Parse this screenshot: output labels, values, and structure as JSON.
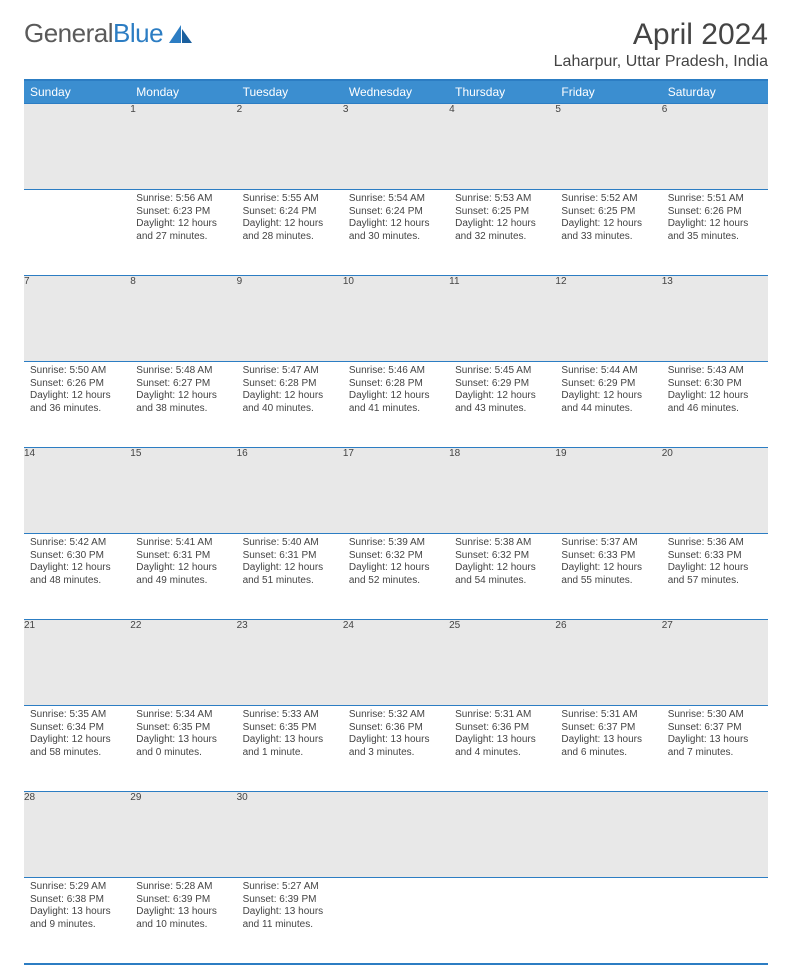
{
  "brand": {
    "name_gray": "General",
    "name_blue": "Blue"
  },
  "title": "April 2024",
  "location": "Laharpur, Uttar Pradesh, India",
  "colors": {
    "header_bg": "#3b8ed0",
    "border": "#2C7DC3",
    "daynum_bg": "#e8e8e8",
    "text": "#444444",
    "background": "#ffffff"
  },
  "day_headers": [
    "Sunday",
    "Monday",
    "Tuesday",
    "Wednesday",
    "Thursday",
    "Friday",
    "Saturday"
  ],
  "weeks": [
    [
      null,
      {
        "n": "1",
        "sr": "5:56 AM",
        "ss": "6:23 PM",
        "dl": "12 hours and 27 minutes."
      },
      {
        "n": "2",
        "sr": "5:55 AM",
        "ss": "6:24 PM",
        "dl": "12 hours and 28 minutes."
      },
      {
        "n": "3",
        "sr": "5:54 AM",
        "ss": "6:24 PM",
        "dl": "12 hours and 30 minutes."
      },
      {
        "n": "4",
        "sr": "5:53 AM",
        "ss": "6:25 PM",
        "dl": "12 hours and 32 minutes."
      },
      {
        "n": "5",
        "sr": "5:52 AM",
        "ss": "6:25 PM",
        "dl": "12 hours and 33 minutes."
      },
      {
        "n": "6",
        "sr": "5:51 AM",
        "ss": "6:26 PM",
        "dl": "12 hours and 35 minutes."
      }
    ],
    [
      {
        "n": "7",
        "sr": "5:50 AM",
        "ss": "6:26 PM",
        "dl": "12 hours and 36 minutes."
      },
      {
        "n": "8",
        "sr": "5:48 AM",
        "ss": "6:27 PM",
        "dl": "12 hours and 38 minutes."
      },
      {
        "n": "9",
        "sr": "5:47 AM",
        "ss": "6:28 PM",
        "dl": "12 hours and 40 minutes."
      },
      {
        "n": "10",
        "sr": "5:46 AM",
        "ss": "6:28 PM",
        "dl": "12 hours and 41 minutes."
      },
      {
        "n": "11",
        "sr": "5:45 AM",
        "ss": "6:29 PM",
        "dl": "12 hours and 43 minutes."
      },
      {
        "n": "12",
        "sr": "5:44 AM",
        "ss": "6:29 PM",
        "dl": "12 hours and 44 minutes."
      },
      {
        "n": "13",
        "sr": "5:43 AM",
        "ss": "6:30 PM",
        "dl": "12 hours and 46 minutes."
      }
    ],
    [
      {
        "n": "14",
        "sr": "5:42 AM",
        "ss": "6:30 PM",
        "dl": "12 hours and 48 minutes."
      },
      {
        "n": "15",
        "sr": "5:41 AM",
        "ss": "6:31 PM",
        "dl": "12 hours and 49 minutes."
      },
      {
        "n": "16",
        "sr": "5:40 AM",
        "ss": "6:31 PM",
        "dl": "12 hours and 51 minutes."
      },
      {
        "n": "17",
        "sr": "5:39 AM",
        "ss": "6:32 PM",
        "dl": "12 hours and 52 minutes."
      },
      {
        "n": "18",
        "sr": "5:38 AM",
        "ss": "6:32 PM",
        "dl": "12 hours and 54 minutes."
      },
      {
        "n": "19",
        "sr": "5:37 AM",
        "ss": "6:33 PM",
        "dl": "12 hours and 55 minutes."
      },
      {
        "n": "20",
        "sr": "5:36 AM",
        "ss": "6:33 PM",
        "dl": "12 hours and 57 minutes."
      }
    ],
    [
      {
        "n": "21",
        "sr": "5:35 AM",
        "ss": "6:34 PM",
        "dl": "12 hours and 58 minutes."
      },
      {
        "n": "22",
        "sr": "5:34 AM",
        "ss": "6:35 PM",
        "dl": "13 hours and 0 minutes."
      },
      {
        "n": "23",
        "sr": "5:33 AM",
        "ss": "6:35 PM",
        "dl": "13 hours and 1 minute."
      },
      {
        "n": "24",
        "sr": "5:32 AM",
        "ss": "6:36 PM",
        "dl": "13 hours and 3 minutes."
      },
      {
        "n": "25",
        "sr": "5:31 AM",
        "ss": "6:36 PM",
        "dl": "13 hours and 4 minutes."
      },
      {
        "n": "26",
        "sr": "5:31 AM",
        "ss": "6:37 PM",
        "dl": "13 hours and 6 minutes."
      },
      {
        "n": "27",
        "sr": "5:30 AM",
        "ss": "6:37 PM",
        "dl": "13 hours and 7 minutes."
      }
    ],
    [
      {
        "n": "28",
        "sr": "5:29 AM",
        "ss": "6:38 PM",
        "dl": "13 hours and 9 minutes."
      },
      {
        "n": "29",
        "sr": "5:28 AM",
        "ss": "6:39 PM",
        "dl": "13 hours and 10 minutes."
      },
      {
        "n": "30",
        "sr": "5:27 AM",
        "ss": "6:39 PM",
        "dl": "13 hours and 11 minutes."
      },
      null,
      null,
      null,
      null
    ]
  ],
  "labels": {
    "sunrise": "Sunrise:",
    "sunset": "Sunset:",
    "daylight": "Daylight:"
  }
}
